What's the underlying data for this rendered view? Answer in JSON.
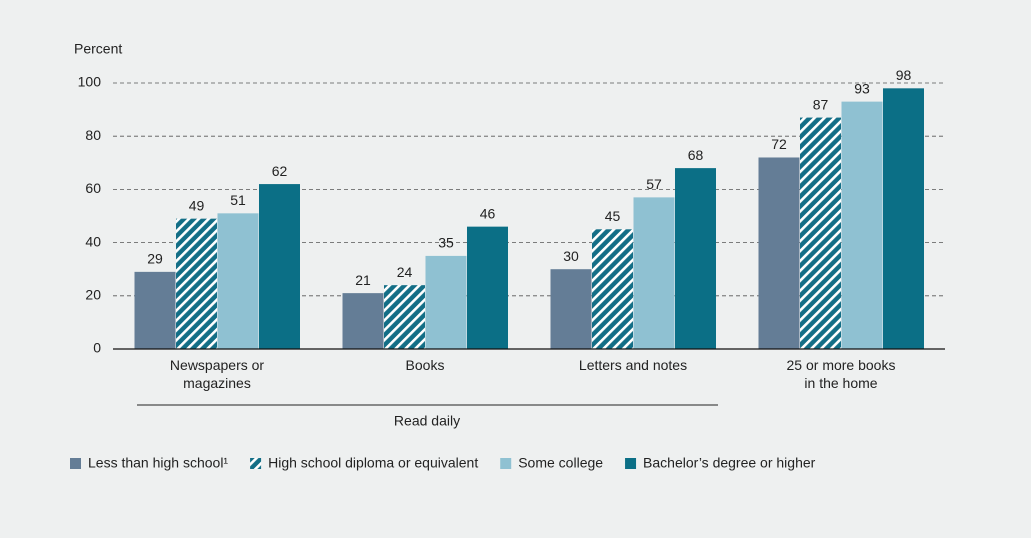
{
  "chart_data": {
    "type": "bar",
    "y_label": "Percent",
    "categories": [
      "Newspapers or\nmagazines",
      "Books",
      "Letters and notes",
      "25 or more books\nin the home"
    ],
    "group_label": "Read daily",
    "series": [
      {
        "name": "Less than high school¹",
        "color": "#647d96",
        "values": [
          29,
          21,
          30,
          72
        ]
      },
      {
        "name": "High school diploma or equivalent",
        "color": "#136e86",
        "pattern": "hatch",
        "values": [
          49,
          24,
          45,
          87
        ]
      },
      {
        "name": "Some college",
        "color": "#8fc1d2",
        "values": [
          51,
          35,
          57,
          93
        ]
      },
      {
        "name": "Bachelor’s degree or higher",
        "color": "#0b6f86",
        "values": [
          62,
          46,
          68,
          98
        ]
      }
    ],
    "ylim": [
      0,
      100
    ],
    "yticks": [
      0,
      20,
      40,
      60,
      80,
      100
    ],
    "grid": true
  }
}
